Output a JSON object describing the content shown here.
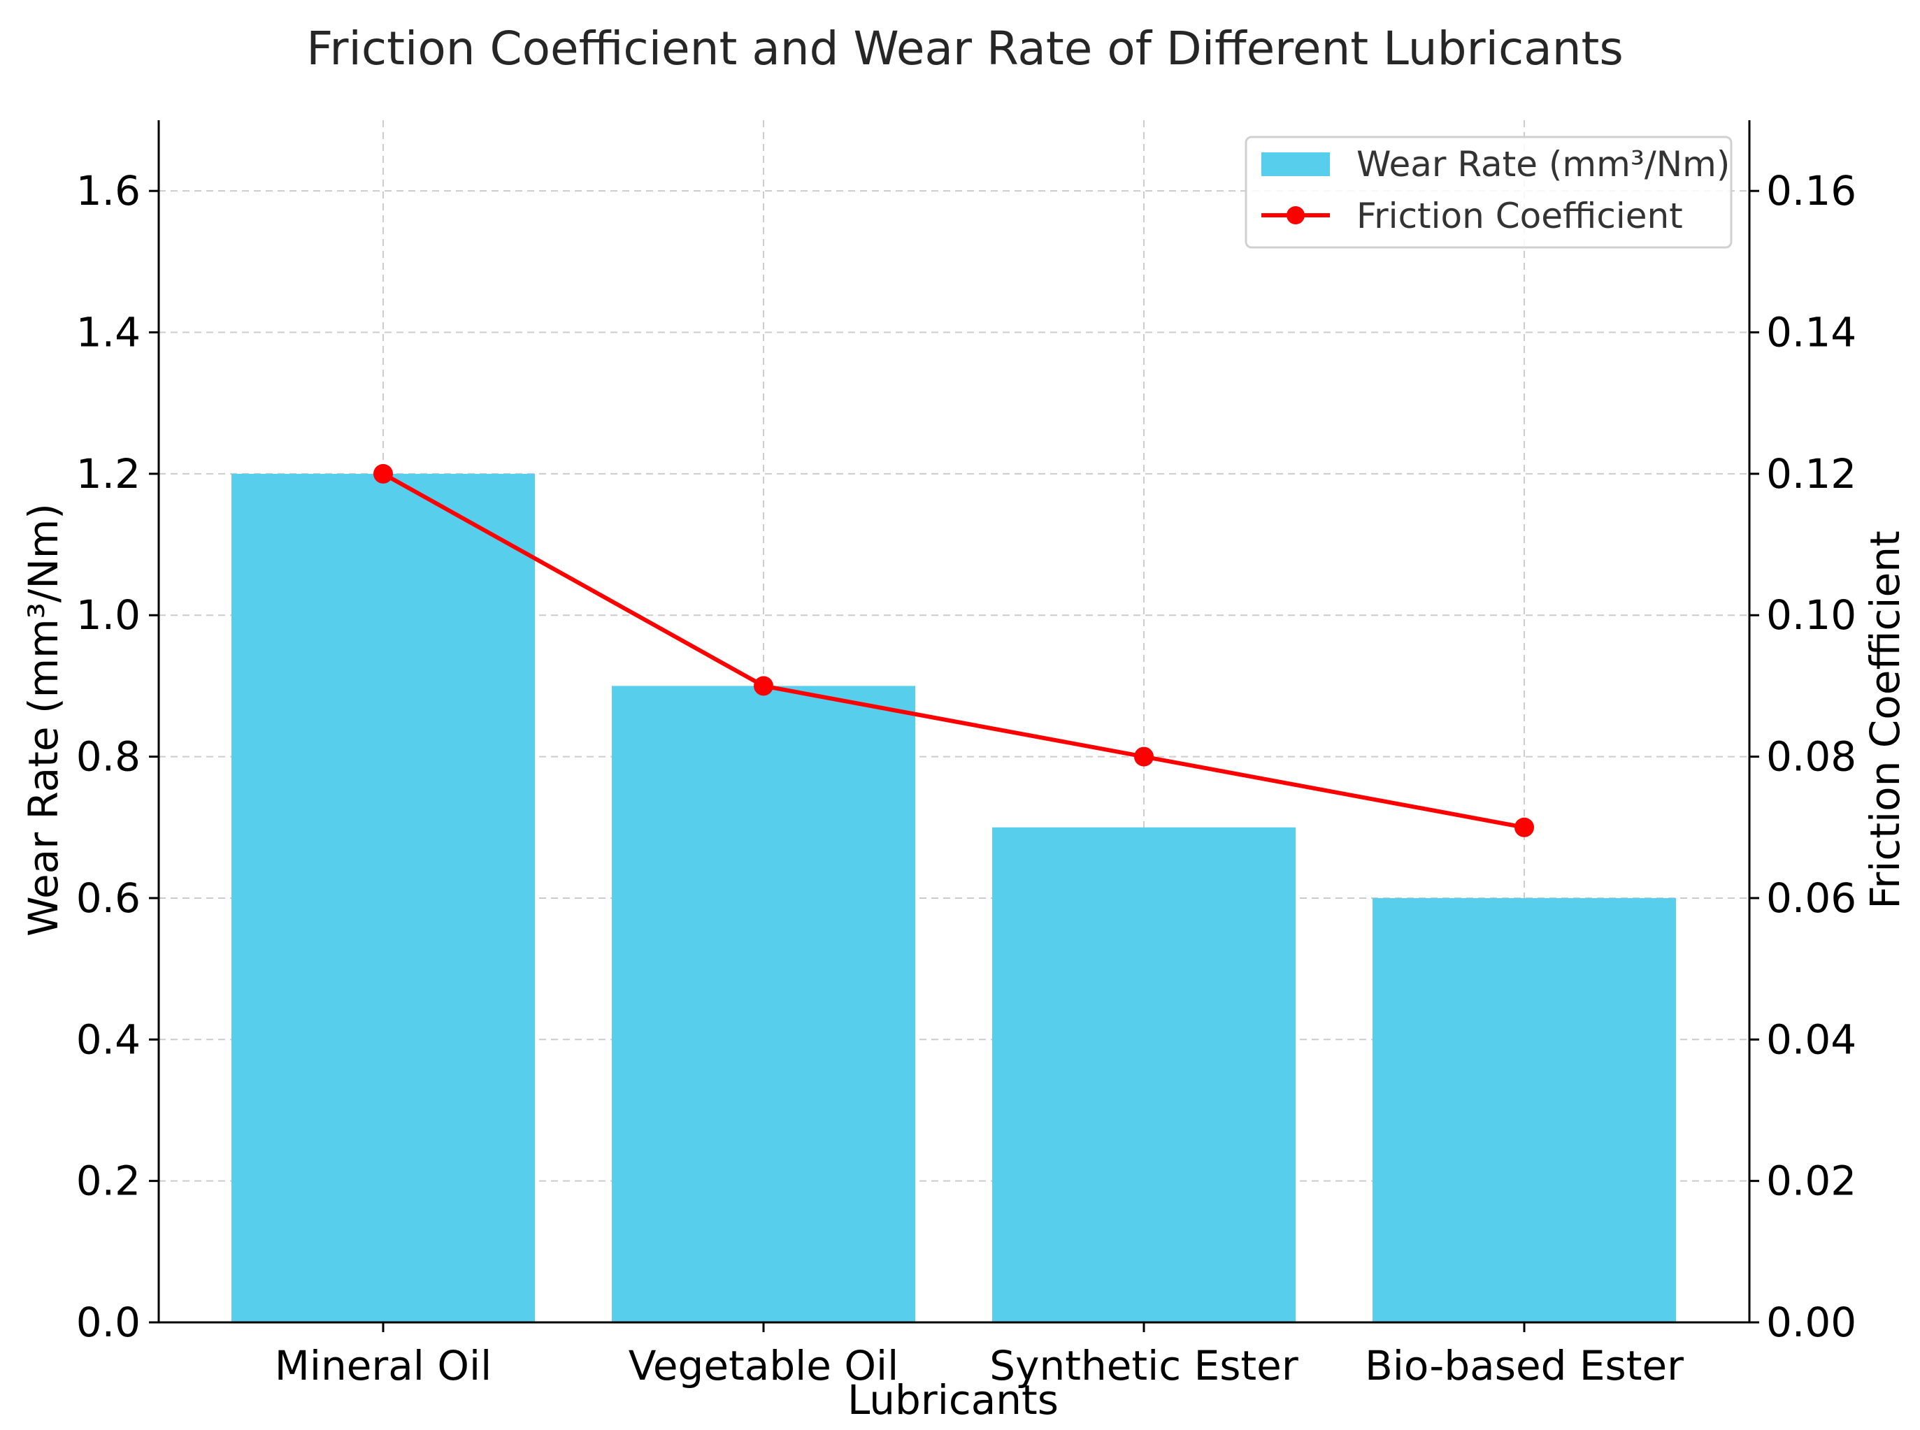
{
  "chart_data": {
    "type": "bar",
    "title": "Friction Coefficient and Wear Rate of Different Lubricants",
    "xlabel": "Lubricants",
    "ylabel": "Wear Rate (mm³/Nm)",
    "y2label": "Friction Coefficient",
    "categories": [
      "Mineral Oil",
      "Vegetable Oil",
      "Synthetic Ester",
      "Bio-based Ester"
    ],
    "ylim": [
      0,
      1.7
    ],
    "y2lim": [
      0,
      0.17
    ],
    "yticks": [
      "0.0",
      "0.2",
      "0.4",
      "0.6",
      "0.8",
      "1.0",
      "1.2",
      "1.4",
      "1.6"
    ],
    "y2ticks": [
      "0.00",
      "0.02",
      "0.04",
      "0.06",
      "0.08",
      "0.10",
      "0.12",
      "0.14",
      "0.16"
    ],
    "grid": true,
    "legend_position": "top-right",
    "series": [
      {
        "name": "Wear Rate (mm³/Nm)",
        "type": "bar",
        "axis": "left",
        "color": "#57CEEC",
        "values": [
          1.2,
          0.9,
          0.7,
          0.6
        ]
      },
      {
        "name": "Friction Coefficient",
        "type": "line",
        "axis": "right",
        "color": "#FF0000",
        "values": [
          0.12,
          0.09,
          0.08,
          0.07
        ]
      }
    ]
  }
}
